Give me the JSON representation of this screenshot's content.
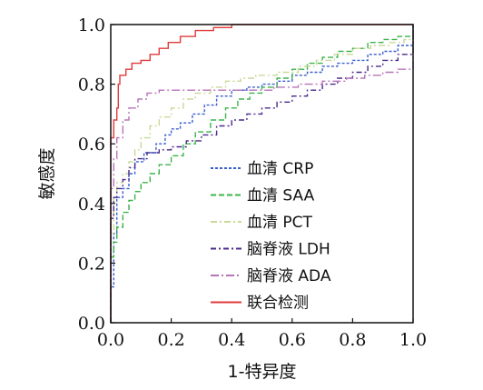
{
  "chart_data": {
    "type": "line",
    "title": "",
    "xlabel": "1-特异度",
    "ylabel": "敏感度",
    "xlim": [
      0,
      1
    ],
    "ylim": [
      0,
      1
    ],
    "x_ticks": [
      "0.0",
      "0.2",
      "0.4",
      "0.6",
      "0.8",
      "1.0"
    ],
    "y_ticks": [
      "0.0",
      "0.2",
      "0.4",
      "0.6",
      "0.8",
      "1.0"
    ],
    "grid": false,
    "legend_position": "center-right",
    "series": [
      {
        "name": "血清 CRP",
        "color": "#3a5fcd",
        "dash": "3,2",
        "points": [
          [
            0,
            0
          ],
          [
            0,
            0.12
          ],
          [
            0.01,
            0.3
          ],
          [
            0.02,
            0.42
          ],
          [
            0.04,
            0.45
          ],
          [
            0.06,
            0.5
          ],
          [
            0.08,
            0.54
          ],
          [
            0.11,
            0.57
          ],
          [
            0.15,
            0.6
          ],
          [
            0.18,
            0.63
          ],
          [
            0.2,
            0.65
          ],
          [
            0.23,
            0.67
          ],
          [
            0.27,
            0.7
          ],
          [
            0.31,
            0.73
          ],
          [
            0.35,
            0.76
          ],
          [
            0.4,
            0.78
          ],
          [
            0.45,
            0.79
          ],
          [
            0.5,
            0.8
          ],
          [
            0.55,
            0.81
          ],
          [
            0.6,
            0.83
          ],
          [
            0.65,
            0.84
          ],
          [
            0.7,
            0.86
          ],
          [
            0.75,
            0.87
          ],
          [
            0.8,
            0.88
          ],
          [
            0.85,
            0.9
          ],
          [
            0.9,
            0.91
          ],
          [
            0.95,
            0.93
          ],
          [
            1,
            0.95
          ],
          [
            1,
            1
          ]
        ]
      },
      {
        "name": "血清 SAA",
        "color": "#3cb34a",
        "dash": "6,3",
        "points": [
          [
            0,
            0
          ],
          [
            0,
            0.22
          ],
          [
            0.01,
            0.27
          ],
          [
            0.02,
            0.32
          ],
          [
            0.04,
            0.37
          ],
          [
            0.06,
            0.41
          ],
          [
            0.08,
            0.44
          ],
          [
            0.1,
            0.47
          ],
          [
            0.13,
            0.5
          ],
          [
            0.16,
            0.53
          ],
          [
            0.2,
            0.56
          ],
          [
            0.24,
            0.6
          ],
          [
            0.28,
            0.64
          ],
          [
            0.33,
            0.68
          ],
          [
            0.38,
            0.72
          ],
          [
            0.42,
            0.75
          ],
          [
            0.46,
            0.77
          ],
          [
            0.5,
            0.79
          ],
          [
            0.55,
            0.82
          ],
          [
            0.6,
            0.85
          ],
          [
            0.65,
            0.87
          ],
          [
            0.7,
            0.89
          ],
          [
            0.75,
            0.91
          ],
          [
            0.8,
            0.92
          ],
          [
            0.85,
            0.94
          ],
          [
            0.9,
            0.95
          ],
          [
            0.95,
            0.96
          ],
          [
            1,
            0.97
          ],
          [
            1,
            1
          ]
        ]
      },
      {
        "name": "血清 PCT",
        "color": "#c9d99a",
        "dash": "7,3,2,3",
        "points": [
          [
            0,
            0
          ],
          [
            0,
            0.3
          ],
          [
            0.01,
            0.42
          ],
          [
            0.02,
            0.47
          ],
          [
            0.04,
            0.5
          ],
          [
            0.06,
            0.54
          ],
          [
            0.08,
            0.58
          ],
          [
            0.1,
            0.62
          ],
          [
            0.13,
            0.66
          ],
          [
            0.16,
            0.69
          ],
          [
            0.2,
            0.72
          ],
          [
            0.24,
            0.75
          ],
          [
            0.28,
            0.77
          ],
          [
            0.33,
            0.79
          ],
          [
            0.38,
            0.81
          ],
          [
            0.43,
            0.82
          ],
          [
            0.48,
            0.83
          ],
          [
            0.55,
            0.84
          ],
          [
            0.62,
            0.86
          ],
          [
            0.68,
            0.88
          ],
          [
            0.74,
            0.9
          ],
          [
            0.8,
            0.92
          ],
          [
            0.86,
            0.93
          ],
          [
            0.92,
            0.94
          ],
          [
            0.97,
            0.95
          ],
          [
            1,
            0.96
          ],
          [
            1,
            1
          ]
        ]
      },
      {
        "name": "脑脊液 LDH",
        "color": "#4b2a8c",
        "dash": "6,3,2,3",
        "points": [
          [
            0,
            0
          ],
          [
            0,
            0.35
          ],
          [
            0.01,
            0.42
          ],
          [
            0.02,
            0.45
          ],
          [
            0.04,
            0.48
          ],
          [
            0.06,
            0.52
          ],
          [
            0.08,
            0.55
          ],
          [
            0.12,
            0.57
          ],
          [
            0.16,
            0.58
          ],
          [
            0.2,
            0.59
          ],
          [
            0.25,
            0.61
          ],
          [
            0.3,
            0.63
          ],
          [
            0.35,
            0.66
          ],
          [
            0.4,
            0.68
          ],
          [
            0.45,
            0.7
          ],
          [
            0.5,
            0.72
          ],
          [
            0.55,
            0.74
          ],
          [
            0.6,
            0.76
          ],
          [
            0.65,
            0.78
          ],
          [
            0.7,
            0.8
          ],
          [
            0.75,
            0.82
          ],
          [
            0.8,
            0.84
          ],
          [
            0.85,
            0.86
          ],
          [
            0.9,
            0.88
          ],
          [
            0.95,
            0.9
          ],
          [
            1,
            0.92
          ],
          [
            1,
            1
          ]
        ]
      },
      {
        "name": "脑脊液 ADA",
        "color": "#b874b8",
        "dash": "9,3,2,3",
        "points": [
          [
            0,
            0
          ],
          [
            0,
            0.45
          ],
          [
            0.01,
            0.55
          ],
          [
            0.02,
            0.62
          ],
          [
            0.04,
            0.68
          ],
          [
            0.06,
            0.72
          ],
          [
            0.09,
            0.75
          ],
          [
            0.12,
            0.77
          ],
          [
            0.16,
            0.78
          ],
          [
            0.22,
            0.78
          ],
          [
            0.3,
            0.78
          ],
          [
            0.38,
            0.78
          ],
          [
            0.46,
            0.78
          ],
          [
            0.54,
            0.79
          ],
          [
            0.62,
            0.8
          ],
          [
            0.7,
            0.81
          ],
          [
            0.78,
            0.82
          ],
          [
            0.84,
            0.83
          ],
          [
            0.9,
            0.84
          ],
          [
            0.95,
            0.85
          ],
          [
            1,
            0.86
          ],
          [
            1,
            1
          ]
        ]
      },
      {
        "name": "联合检测",
        "color": "#e03a3a",
        "dash": "",
        "points": [
          [
            0,
            0
          ],
          [
            0,
            0.62
          ],
          [
            0.01,
            0.68
          ],
          [
            0.02,
            0.72
          ],
          [
            0.025,
            0.8
          ],
          [
            0.03,
            0.83
          ],
          [
            0.05,
            0.85
          ],
          [
            0.07,
            0.87
          ],
          [
            0.1,
            0.88
          ],
          [
            0.13,
            0.9
          ],
          [
            0.16,
            0.92
          ],
          [
            0.19,
            0.94
          ],
          [
            0.23,
            0.96
          ],
          [
            0.28,
            0.98
          ],
          [
            0.34,
            0.99
          ],
          [
            0.4,
            1
          ],
          [
            0.6,
            1
          ],
          [
            1,
            1
          ]
        ]
      }
    ]
  }
}
